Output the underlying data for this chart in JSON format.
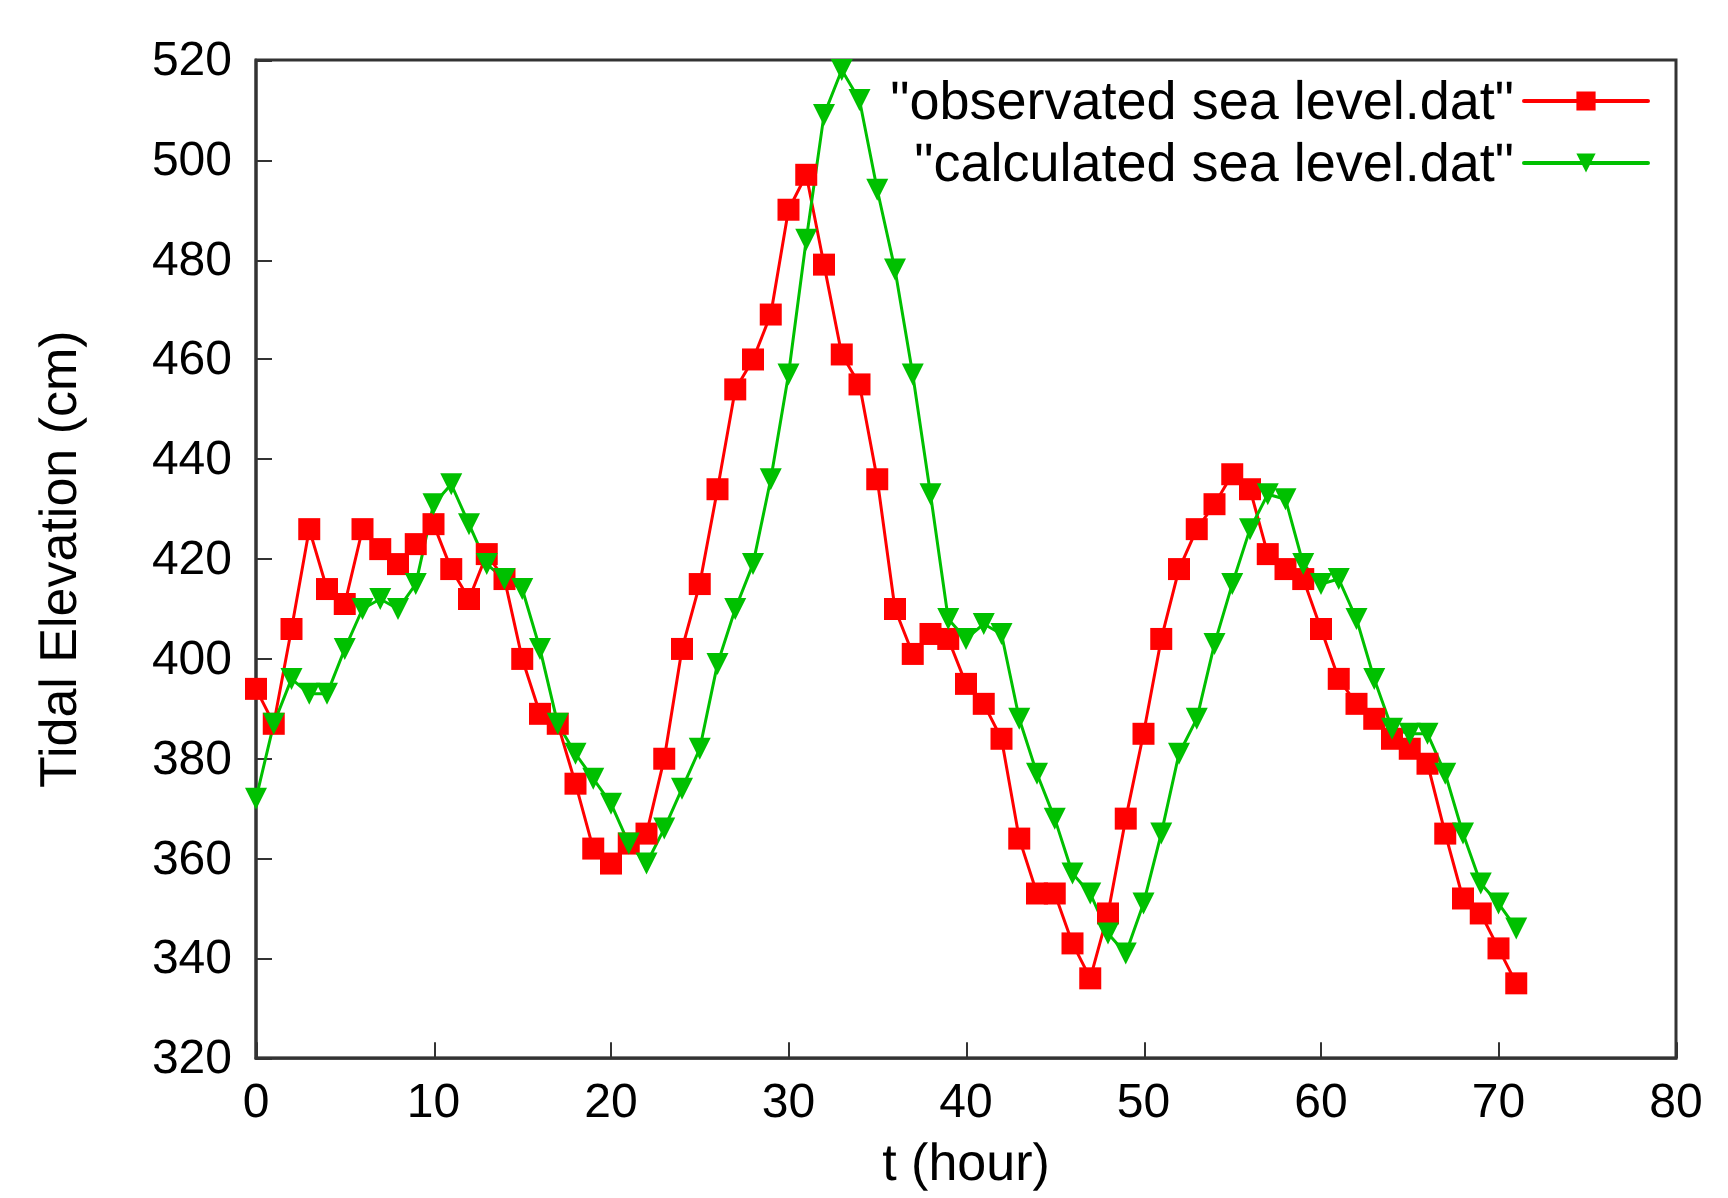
{
  "chart_data": {
    "type": "line",
    "xlabel": "t (hour)",
    "ylabel": "Tidal Elevation (cm)",
    "x": [
      0,
      1,
      2,
      3,
      4,
      5,
      6,
      7,
      8,
      9,
      10,
      11,
      12,
      13,
      14,
      15,
      16,
      17,
      18,
      19,
      20,
      21,
      22,
      23,
      24,
      25,
      26,
      27,
      28,
      29,
      30,
      31,
      32,
      33,
      34,
      35,
      36,
      37,
      38,
      39,
      40,
      41,
      42,
      43,
      44,
      45,
      46,
      47,
      48,
      49,
      50,
      51,
      52,
      53,
      54,
      55,
      56,
      57,
      58,
      59,
      60,
      61,
      62,
      63,
      64,
      65,
      66,
      67,
      68,
      69,
      70,
      71
    ],
    "series": [
      {
        "name": "\"observated sea level.dat\"",
        "color": "#ff0000",
        "marker": "square",
        "values": [
          394,
          387,
          406,
          426,
          414,
          411,
          426,
          422,
          419,
          423,
          427,
          418,
          412,
          421,
          416,
          400,
          389,
          387,
          375,
          362,
          359,
          363,
          365,
          380,
          402,
          415,
          434,
          454,
          460,
          469,
          490,
          497,
          479,
          461,
          455,
          436,
          410,
          401,
          405,
          404,
          395,
          391,
          384,
          364,
          353,
          353,
          343,
          336,
          349,
          368,
          385,
          404,
          418,
          426,
          431,
          437,
          434,
          421,
          418,
          416,
          406,
          396,
          391,
          388,
          384,
          382,
          379,
          365,
          352,
          349,
          342,
          335
        ]
      },
      {
        "name": "\"calculated sea level.dat\"",
        "color": "#00c000",
        "marker": "triangle",
        "values": [
          372,
          387,
          396,
          393,
          393,
          402,
          410,
          412,
          410,
          415,
          431,
          435,
          427,
          419,
          416,
          414,
          402,
          387,
          381,
          376,
          371,
          363,
          359,
          366,
          374,
          382,
          399,
          410,
          419,
          436,
          457,
          484,
          509,
          518,
          512,
          494,
          478,
          457,
          433,
          408,
          404,
          407,
          405,
          388,
          377,
          368,
          357,
          353,
          345,
          341,
          351,
          365,
          381,
          388,
          403,
          415,
          426,
          433,
          432,
          419,
          415,
          416,
          408,
          396,
          386,
          385,
          385,
          377,
          365,
          355,
          351,
          346
        ]
      }
    ],
    "xlim": [
      0,
      80
    ],
    "xticks": [
      0,
      10,
      20,
      30,
      40,
      50,
      60,
      70,
      80
    ],
    "ylim": [
      320,
      520
    ],
    "yticks": [
      320,
      340,
      360,
      380,
      400,
      420,
      440,
      460,
      480,
      500,
      520
    ],
    "grid": false,
    "legend": "top right",
    "line_style": "solid"
  }
}
